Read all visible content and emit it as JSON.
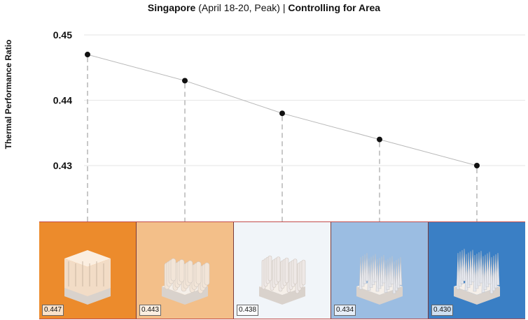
{
  "title": {
    "bold_part": "Singapore",
    "normal_part": " (April 18-20, Peak) | ",
    "bold_part2": "Controlling for Area"
  },
  "chart_data": {
    "type": "line",
    "ylabel": "Thermal Performance Ratio",
    "ylim": [
      0.4265,
      0.451
    ],
    "yticks": [
      "0.43",
      "0.44",
      "0.45"
    ],
    "ytick_values": [
      0.43,
      0.44,
      0.45
    ],
    "x": [
      1,
      2,
      3,
      4,
      5
    ],
    "values": [
      0.447,
      0.443,
      0.438,
      0.434,
      0.43
    ],
    "grid": "horizontal",
    "markers": true
  },
  "panels": [
    {
      "label": "0.447",
      "color": "#ec8b2c",
      "model": "cracked-block"
    },
    {
      "label": "0.443",
      "color": "#f3bf89",
      "model": "pillar-cluster"
    },
    {
      "label": "0.438",
      "color": "#f1f5f9",
      "model": "pin-array"
    },
    {
      "label": "0.434",
      "color": "#9bbde2",
      "model": "spike-array"
    },
    {
      "label": "0.430",
      "color": "#3a7fc5",
      "model": "tall-spike-array"
    }
  ]
}
